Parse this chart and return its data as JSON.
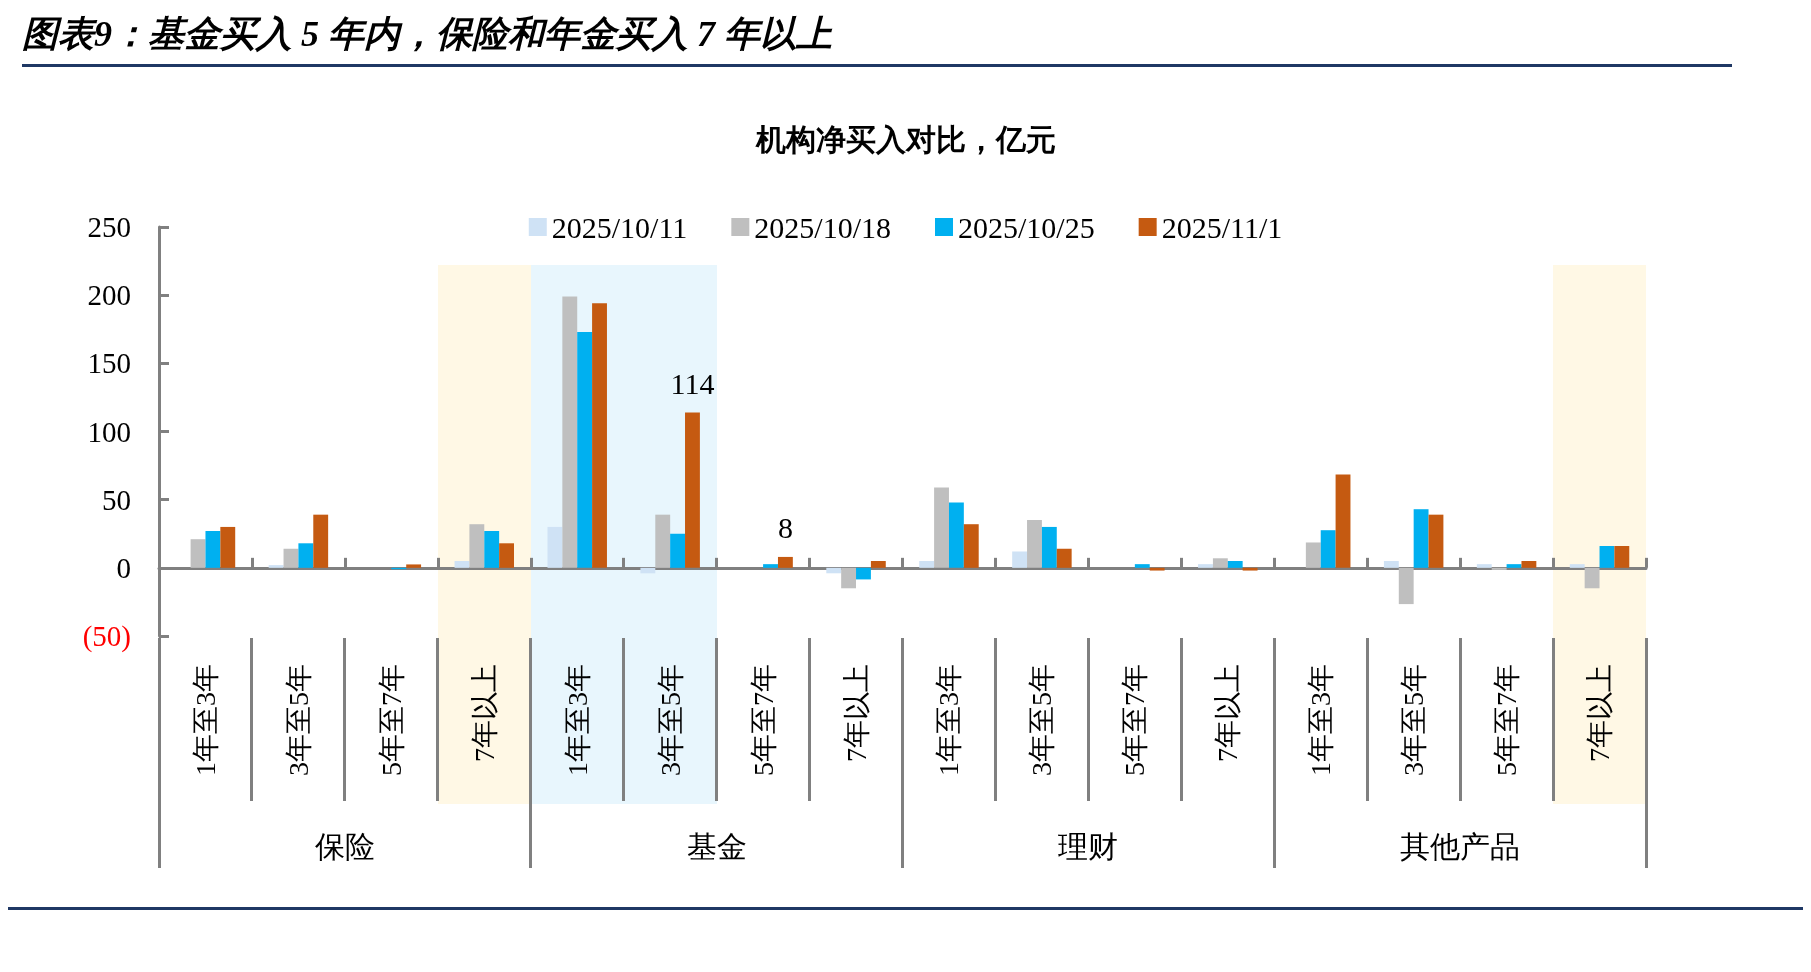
{
  "chart_data": {
    "type": "bar",
    "title": "图表9：基金买入 5 年内，保险和年金买入 7 年以上",
    "subtitle": "机构净买入对比，亿元",
    "categories": [
      "1年至3年",
      "3年至5年",
      "5年至7年",
      "7年以上",
      "1年至3年",
      "3年至5年",
      "5年至7年",
      "7年以上",
      "1年至3年",
      "3年至5年",
      "5年至7年",
      "7年以上",
      "1年至3年",
      "3年至5年",
      "5年至7年",
      "7年以上"
    ],
    "series": [
      {
        "name": "2025/10/11",
        "color": "#cfe2f5",
        "values": [
          0,
          2,
          0,
          5,
          30,
          -4,
          0,
          -4,
          5,
          12,
          null,
          2.7,
          null,
          5,
          2.7,
          2.7
        ]
      },
      {
        "name": "2025/10/18",
        "color": "#bfbfbf",
        "values": [
          21,
          14,
          null,
          32,
          199,
          39,
          null,
          -15,
          59,
          35,
          null,
          7,
          18.6,
          -26.6,
          -1.5,
          -15
        ]
      },
      {
        "name": "2025/10/25",
        "color": "#00b0f0",
        "values": [
          27,
          18,
          -1,
          27,
          173,
          25,
          2.7,
          -8.5,
          48,
          30,
          2.7,
          5,
          27.6,
          43,
          2.7,
          16
        ]
      },
      {
        "name": "2025/11/1",
        "color": "#c55a11",
        "values": [
          30,
          39,
          2.5,
          18,
          194,
          114,
          8,
          5,
          32,
          14,
          -2,
          -2,
          68.5,
          39,
          5,
          16
        ],
        "value_labels": [
          null,
          null,
          null,
          null,
          null,
          "114",
          "8",
          null,
          null,
          null,
          null,
          null,
          null,
          null,
          null,
          null
        ]
      }
    ],
    "ylim": [
      -50,
      250
    ],
    "yticks": [
      {
        "value": -50,
        "label": "(50)"
      },
      0,
      50,
      100,
      150,
      200,
      250
    ],
    "annotations": [
      "保险",
      "基金",
      "理财",
      "其他产品"
    ],
    "legend": "top"
  }
}
